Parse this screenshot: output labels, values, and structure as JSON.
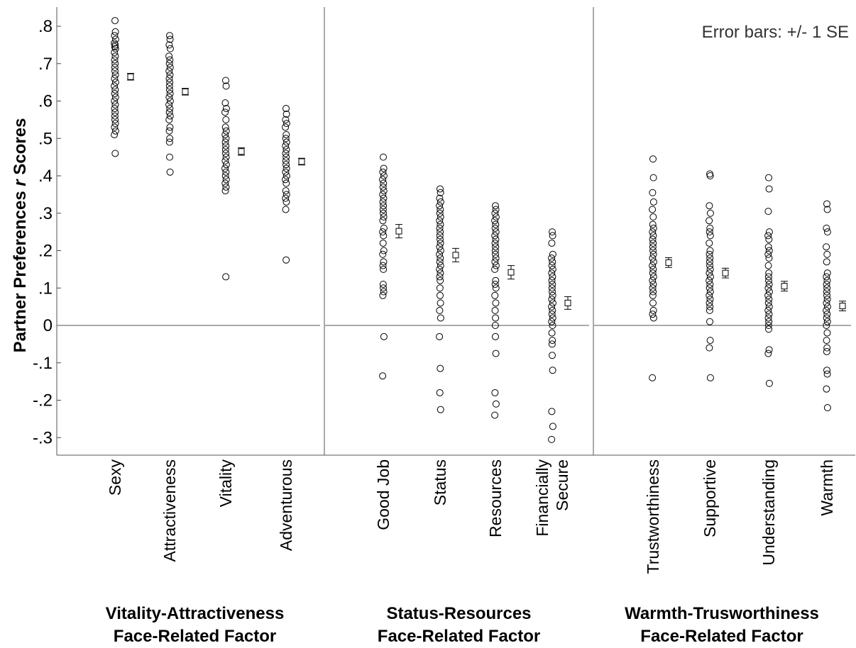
{
  "chart_data": {
    "type": "scatter",
    "ylabel_parts": [
      "Partner Preferences ",
      "r",
      " Scores"
    ],
    "note": "Error bars: +/- 1 SE",
    "ylim": [
      -0.35,
      0.85
    ],
    "yticks": [
      0.8,
      0.7,
      0.6,
      0.5,
      0.4,
      0.3,
      0.2,
      0.1,
      0,
      -0.1,
      -0.2,
      -0.3
    ],
    "ytick_labels": [
      ".8",
      ".7",
      ".6",
      ".5",
      ".4",
      ".3",
      ".2",
      ".1",
      "0",
      "-.1",
      "-.2",
      "-.3"
    ],
    "panels": [
      {
        "group_label": [
          "Vitality-Attractiveness",
          "Face-Related Factor"
        ],
        "categories": [
          {
            "label": [
              "Sexy"
            ],
            "mean": 0.665,
            "se": 0.009,
            "points": [
              0.815,
              0.785,
              0.775,
              0.765,
              0.755,
              0.75,
              0.745,
              0.74,
              0.73,
              0.72,
              0.71,
              0.7,
              0.69,
              0.68,
              0.67,
              0.66,
              0.65,
              0.64,
              0.63,
              0.62,
              0.61,
              0.6,
              0.59,
              0.58,
              0.57,
              0.56,
              0.55,
              0.54,
              0.53,
              0.52,
              0.51,
              0.46
            ]
          },
          {
            "label": [
              "Attractiveness"
            ],
            "mean": 0.625,
            "se": 0.009,
            "points": [
              0.775,
              0.765,
              0.75,
              0.74,
              0.72,
              0.71,
              0.7,
              0.69,
              0.68,
              0.67,
              0.66,
              0.65,
              0.64,
              0.63,
              0.62,
              0.61,
              0.6,
              0.59,
              0.58,
              0.57,
              0.56,
              0.55,
              0.53,
              0.52,
              0.5,
              0.49,
              0.45,
              0.41
            ]
          },
          {
            "label": [
              "Vitality"
            ],
            "mean": 0.465,
            "se": 0.01,
            "points": [
              0.655,
              0.64,
              0.595,
              0.58,
              0.57,
              0.55,
              0.53,
              0.52,
              0.51,
              0.5,
              0.49,
              0.48,
              0.47,
              0.46,
              0.45,
              0.44,
              0.43,
              0.42,
              0.41,
              0.4,
              0.39,
              0.38,
              0.37,
              0.36,
              0.13
            ]
          },
          {
            "label": [
              "Adventurous"
            ],
            "mean": 0.438,
            "se": 0.009,
            "points": [
              0.58,
              0.565,
              0.55,
              0.54,
              0.53,
              0.51,
              0.5,
              0.49,
              0.48,
              0.47,
              0.46,
              0.45,
              0.44,
              0.43,
              0.42,
              0.41,
              0.4,
              0.39,
              0.38,
              0.36,
              0.35,
              0.34,
              0.33,
              0.31,
              0.175
            ]
          }
        ]
      },
      {
        "group_label": [
          "Status-Resources",
          "Face-Related Factor"
        ],
        "categories": [
          {
            "label": [
              "Good Job"
            ],
            "mean": 0.252,
            "se": 0.018,
            "points": [
              0.45,
              0.42,
              0.41,
              0.4,
              0.39,
              0.38,
              0.37,
              0.36,
              0.35,
              0.34,
              0.33,
              0.32,
              0.31,
              0.3,
              0.29,
              0.28,
              0.26,
              0.25,
              0.24,
              0.22,
              0.2,
              0.19,
              0.17,
              0.16,
              0.15,
              0.11,
              0.1,
              0.09,
              0.08,
              -0.03,
              -0.135
            ]
          },
          {
            "label": [
              "Status"
            ],
            "mean": 0.188,
            "se": 0.018,
            "points": [
              0.365,
              0.355,
              0.34,
              0.33,
              0.32,
              0.31,
              0.3,
              0.29,
              0.28,
              0.27,
              0.26,
              0.25,
              0.24,
              0.23,
              0.22,
              0.21,
              0.2,
              0.19,
              0.18,
              0.17,
              0.16,
              0.15,
              0.14,
              0.13,
              0.12,
              0.1,
              0.08,
              0.06,
              0.04,
              0.02,
              -0.03,
              -0.115,
              -0.18,
              -0.225
            ]
          },
          {
            "label": [
              "Resources"
            ],
            "mean": 0.142,
            "se": 0.018,
            "points": [
              0.32,
              0.31,
              0.3,
              0.29,
              0.28,
              0.27,
              0.26,
              0.25,
              0.24,
              0.23,
              0.22,
              0.21,
              0.2,
              0.19,
              0.18,
              0.17,
              0.16,
              0.15,
              0.12,
              0.11,
              0.1,
              0.08,
              0.06,
              0.04,
              0.02,
              0.0,
              -0.03,
              -0.075,
              -0.18,
              -0.21,
              -0.24
            ]
          },
          {
            "label": [
              "Financially",
              "Secure"
            ],
            "mean": 0.06,
            "se": 0.017,
            "points": [
              0.25,
              0.24,
              0.22,
              0.19,
              0.18,
              0.17,
              0.16,
              0.15,
              0.14,
              0.13,
              0.12,
              0.11,
              0.1,
              0.09,
              0.08,
              0.07,
              0.06,
              0.05,
              0.04,
              0.03,
              0.02,
              0.01,
              0.0,
              -0.02,
              -0.04,
              -0.05,
              -0.08,
              -0.12,
              -0.23,
              -0.27,
              -0.305
            ]
          }
        ]
      },
      {
        "group_label": [
          "Warmth-Trusworthiness",
          "Face-Related Factor"
        ],
        "categories": [
          {
            "label": [
              "Trustworthiness"
            ],
            "mean": 0.168,
            "se": 0.013,
            "points": [
              0.445,
              0.395,
              0.355,
              0.33,
              0.31,
              0.29,
              0.27,
              0.26,
              0.25,
              0.24,
              0.23,
              0.22,
              0.21,
              0.2,
              0.19,
              0.18,
              0.17,
              0.16,
              0.15,
              0.14,
              0.13,
              0.12,
              0.11,
              0.1,
              0.09,
              0.08,
              0.06,
              0.04,
              0.03,
              0.02,
              -0.14
            ]
          },
          {
            "label": [
              "Supportive"
            ],
            "mean": 0.14,
            "se": 0.013,
            "points": [
              0.405,
              0.4,
              0.32,
              0.3,
              0.28,
              0.26,
              0.25,
              0.24,
              0.22,
              0.2,
              0.19,
              0.18,
              0.17,
              0.16,
              0.15,
              0.14,
              0.13,
              0.12,
              0.11,
              0.1,
              0.09,
              0.08,
              0.07,
              0.06,
              0.05,
              0.04,
              0.01,
              -0.04,
              -0.06,
              -0.14
            ]
          },
          {
            "label": [
              "Understanding"
            ],
            "mean": 0.105,
            "se": 0.013,
            "points": [
              0.395,
              0.365,
              0.305,
              0.25,
              0.24,
              0.23,
              0.21,
              0.2,
              0.19,
              0.18,
              0.16,
              0.14,
              0.13,
              0.12,
              0.11,
              0.1,
              0.09,
              0.08,
              0.07,
              0.06,
              0.05,
              0.04,
              0.03,
              0.02,
              0.01,
              0.0,
              -0.01,
              -0.065,
              -0.075,
              -0.155
            ]
          },
          {
            "label": [
              "Warmth"
            ],
            "mean": 0.052,
            "se": 0.013,
            "points": [
              0.325,
              0.31,
              0.26,
              0.25,
              0.21,
              0.19,
              0.17,
              0.14,
              0.13,
              0.12,
              0.11,
              0.1,
              0.09,
              0.08,
              0.07,
              0.06,
              0.05,
              0.04,
              0.03,
              0.02,
              0.01,
              0.0,
              -0.02,
              -0.04,
              -0.06,
              -0.07,
              -0.12,
              -0.13,
              -0.17,
              -0.22
            ]
          }
        ]
      }
    ]
  }
}
